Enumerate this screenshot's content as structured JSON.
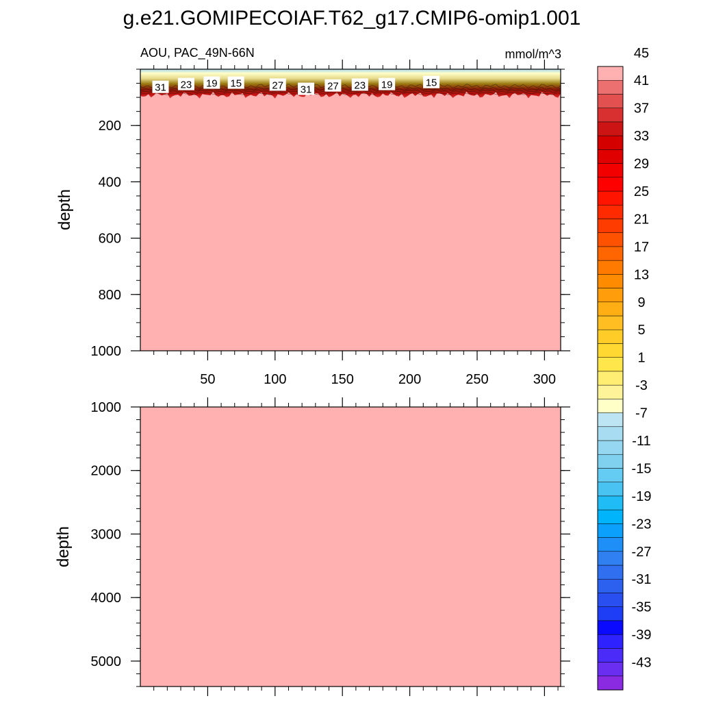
{
  "title": "g.e21.GOMIPECOIAF.T62_g17.CMIP6-omip1.001",
  "chart_data": {
    "type": "heatmap",
    "variable_label": "AOU, PAC_49N-66N",
    "units": "mmol/m^3",
    "fill_color": "#ffb0b0",
    "colorbar": {
      "levels": [
        -45,
        -43,
        -41,
        -39,
        -37,
        -35,
        -33,
        -31,
        -29,
        -27,
        -25,
        -23,
        -21,
        -19,
        -17,
        -15,
        -13,
        -11,
        -9,
        -7,
        -5,
        -3,
        -1,
        1,
        3,
        5,
        7,
        9,
        11,
        13,
        15,
        17,
        19,
        21,
        23,
        25,
        27,
        29,
        31,
        33,
        35,
        37,
        39,
        41,
        43,
        45
      ],
      "labels": [
        "45",
        "41",
        "37",
        "33",
        "29",
        "25",
        "21",
        "17",
        "13",
        "9",
        "5",
        "1",
        "-3",
        "-7",
        "-11",
        "-15",
        "-19",
        "-23",
        "-27",
        "-31",
        "-35",
        "-39",
        "-43"
      ],
      "colors": [
        "#8a2be2",
        "#6a2ef0",
        "#4a2bf8",
        "#2e22ff",
        "#0a0aff",
        "#1e3ef6",
        "#2a4ff0",
        "#2c60ee",
        "#2f6ff0",
        "#3080f2",
        "#1e8ff6",
        "#0aa0fc",
        "#00b4fb",
        "#20bcf5",
        "#49c4f2",
        "#64ccf2",
        "#80d0f0",
        "#95d6f0",
        "#a8dcf0",
        "#bde4f2",
        "#ffffc8",
        "#fff39a",
        "#ffee72",
        "#ffe64b",
        "#ffd832",
        "#ffcc28",
        "#ffbe22",
        "#ffae14",
        "#ff9e0a",
        "#ff8c00",
        "#ff7a00",
        "#ff6600",
        "#ff5200",
        "#ff3c00",
        "#ff2a00",
        "#ff1400",
        "#ff0000",
        "#f20000",
        "#e00000",
        "#d40000",
        "#cc1414",
        "#d83030",
        "#e25050",
        "#ec7070",
        "#ffb0b0"
      ]
    },
    "panels": [
      {
        "ylabel": "depth",
        "ylim": [
          1000,
          0
        ],
        "yticks": [
          200,
          400,
          600,
          800,
          1000
        ],
        "xlim": [
          0,
          312
        ],
        "xticks": [
          50,
          100,
          150,
          200,
          250,
          300
        ]
      },
      {
        "ylabel": "depth",
        "ylim": [
          5400,
          1000
        ],
        "yticks": [
          1000,
          2000,
          3000,
          4000,
          5000
        ],
        "xlim": [
          0,
          312
        ],
        "xticks": [
          50,
          100,
          150,
          200,
          250,
          300
        ]
      }
    ],
    "contour_labels": [
      {
        "x": 15,
        "depth": 65,
        "text": "31"
      },
      {
        "x": 34,
        "depth": 55,
        "text": "23"
      },
      {
        "x": 53,
        "depth": 50,
        "text": "19"
      },
      {
        "x": 71,
        "depth": 50,
        "text": "15"
      },
      {
        "x": 102,
        "depth": 57,
        "text": "27"
      },
      {
        "x": 123,
        "depth": 72,
        "text": "31"
      },
      {
        "x": 143,
        "depth": 60,
        "text": "27"
      },
      {
        "x": 163,
        "depth": 57,
        "text": "23"
      },
      {
        "x": 183,
        "depth": 55,
        "text": "19"
      },
      {
        "x": 216,
        "depth": 48,
        "text": "15"
      }
    ]
  }
}
